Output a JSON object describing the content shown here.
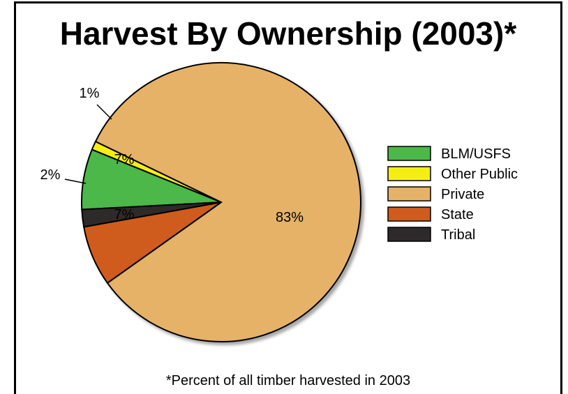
{
  "chart_data": {
    "type": "pie",
    "title": "Harvest By Ownership (2003)*",
    "footnote": "*Percent of all timber harvested in 2003",
    "categories": [
      "BLM/USFS",
      "Other Public",
      "Private",
      "State",
      "Tribal"
    ],
    "values": [
      7,
      1,
      83,
      7,
      2
    ],
    "value_labels": [
      "7%",
      "1%",
      "83%",
      "7%",
      "2%"
    ],
    "colors": [
      "#4cb848",
      "#f5ee12",
      "#e5b267",
      "#cf5b1f",
      "#2e2a2b"
    ],
    "legend_position": "right"
  }
}
